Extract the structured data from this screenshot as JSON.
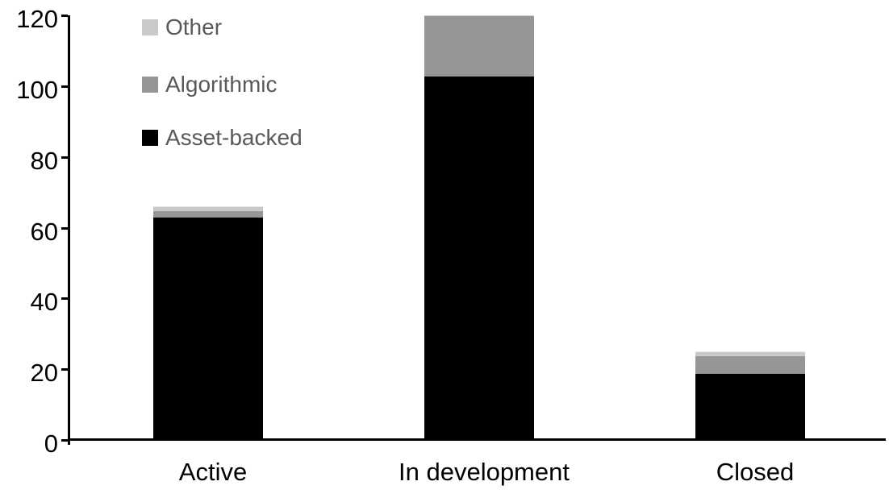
{
  "chart_data": {
    "type": "bar",
    "stacked": true,
    "title": "",
    "xlabel": "",
    "ylabel": "",
    "categories": [
      "Active",
      "In development",
      "Closed"
    ],
    "series": [
      {
        "name": "Asset-backed",
        "color": "#000000",
        "values": [
          63,
          103,
          19
        ]
      },
      {
        "name": "Algorithmic",
        "color": "#969696",
        "values": [
          2,
          17,
          5
        ]
      },
      {
        "name": "Other",
        "color": "#c9c9c9",
        "values": [
          1,
          0,
          1
        ]
      }
    ],
    "totals": [
      66,
      120,
      25
    ],
    "ylim": [
      0,
      120
    ],
    "yticks": [
      "0",
      "20",
      "40",
      "60",
      "80",
      "100",
      "120"
    ],
    "grid": false,
    "legend_position": "top-left",
    "legend": [
      {
        "label": "Other",
        "color": "#c9c9c9"
      },
      {
        "label": "Algorithmic",
        "color": "#969696"
      },
      {
        "label": "Asset-backed",
        "color": "#000000"
      }
    ]
  },
  "colors": {
    "background": "#ffffff",
    "axis": "#000000",
    "tick_label": "#000000",
    "category_label": "#000000",
    "legend_text": "#595959"
  }
}
